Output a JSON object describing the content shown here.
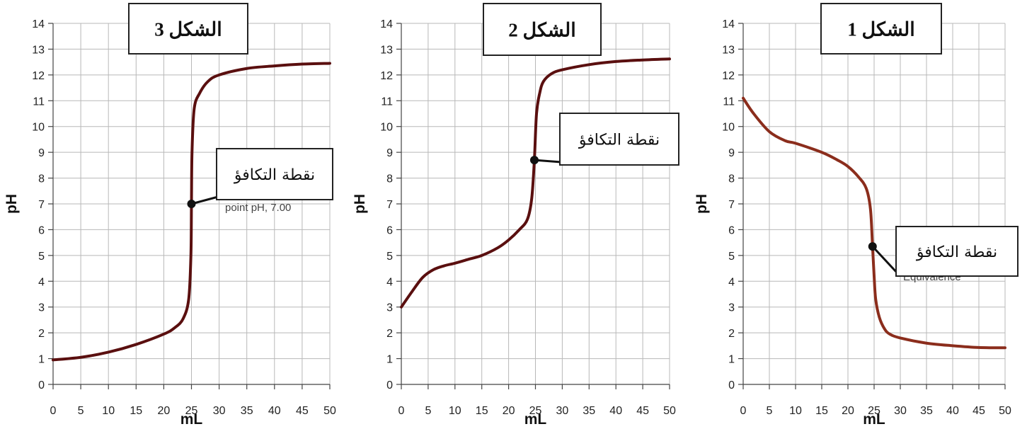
{
  "chart_data": [
    {
      "type": "line",
      "title": "الشكل 3",
      "xlabel": "mL",
      "ylabel": "pH",
      "xlim": [
        0,
        50
      ],
      "ylim": [
        0,
        14
      ],
      "xticks": [
        0,
        5,
        10,
        15,
        20,
        25,
        30,
        35,
        40,
        45,
        50
      ],
      "yticks": [
        0,
        1,
        2,
        3,
        4,
        5,
        6,
        7,
        8,
        9,
        10,
        11,
        12,
        13,
        14
      ],
      "grid": true,
      "line_color": "#5a0f0f",
      "series": [
        {
          "x": [
            0,
            5,
            10,
            15,
            20,
            22,
            23.5,
            24.5,
            24.9,
            25,
            25.1,
            25.5,
            26.5,
            28,
            30,
            35,
            40,
            45,
            50
          ],
          "y": [
            0.95,
            1.05,
            1.25,
            1.55,
            1.95,
            2.2,
            2.55,
            3.3,
            5.0,
            7.0,
            9.0,
            10.7,
            11.3,
            11.75,
            12.0,
            12.25,
            12.35,
            12.42,
            12.45
          ]
        }
      ],
      "annotation": {
        "label": "نقطة التكافؤ",
        "x": 25,
        "y": 7.0,
        "overlap_text": "point pH, 7.00"
      }
    },
    {
      "type": "line",
      "title": "الشكل 2",
      "xlabel": "mL",
      "ylabel": "pH",
      "xlim": [
        0,
        50
      ],
      "ylim": [
        0,
        14
      ],
      "xticks": [
        0,
        5,
        10,
        15,
        20,
        25,
        30,
        35,
        40,
        45,
        50
      ],
      "yticks": [
        0,
        1,
        2,
        3,
        4,
        5,
        6,
        7,
        8,
        9,
        10,
        11,
        12,
        13,
        14
      ],
      "grid": true,
      "line_color": "#5a0f0f",
      "series": [
        {
          "x": [
            0,
            2,
            4,
            6,
            8,
            10,
            12.5,
            15,
            18,
            20,
            22,
            23.5,
            24.3,
            24.8,
            25.2,
            25.8,
            26.5,
            28,
            30,
            35,
            40,
            45,
            50
          ],
          "y": [
            3.0,
            3.6,
            4.15,
            4.45,
            4.6,
            4.7,
            4.85,
            5.0,
            5.3,
            5.6,
            6.0,
            6.4,
            7.2,
            8.7,
            10.5,
            11.3,
            11.75,
            12.05,
            12.2,
            12.4,
            12.52,
            12.58,
            12.62
          ]
        }
      ],
      "annotation": {
        "label": "نقطة التكافؤ",
        "x": 24.8,
        "y": 8.7
      }
    },
    {
      "type": "line",
      "title": "الشكل 1",
      "xlabel": "mL",
      "ylabel": "pH",
      "xlim": [
        0,
        50
      ],
      "ylim": [
        0,
        14
      ],
      "xticks": [
        0,
        5,
        10,
        15,
        20,
        25,
        30,
        35,
        40,
        45,
        50
      ],
      "yticks": [
        0,
        1,
        2,
        3,
        4,
        5,
        6,
        7,
        8,
        9,
        10,
        11,
        12,
        13,
        14
      ],
      "grid": true,
      "line_color": "#8b2d1c",
      "series": [
        {
          "x": [
            0,
            2,
            5,
            8,
            10,
            15,
            18,
            20,
            22,
            23.5,
            24.3,
            24.7,
            25,
            25.3,
            26,
            27,
            28,
            30,
            35,
            40,
            45,
            50
          ],
          "y": [
            11.1,
            10.5,
            9.8,
            9.45,
            9.35,
            9.0,
            8.7,
            8.45,
            8.05,
            7.6,
            6.8,
            5.35,
            4.2,
            3.3,
            2.6,
            2.15,
            1.95,
            1.8,
            1.6,
            1.5,
            1.43,
            1.42
          ]
        }
      ],
      "annotation": {
        "label": "نقطة التكافؤ",
        "x": 24.7,
        "y": 5.35,
        "overlap_text": "Equivalence"
      }
    }
  ]
}
